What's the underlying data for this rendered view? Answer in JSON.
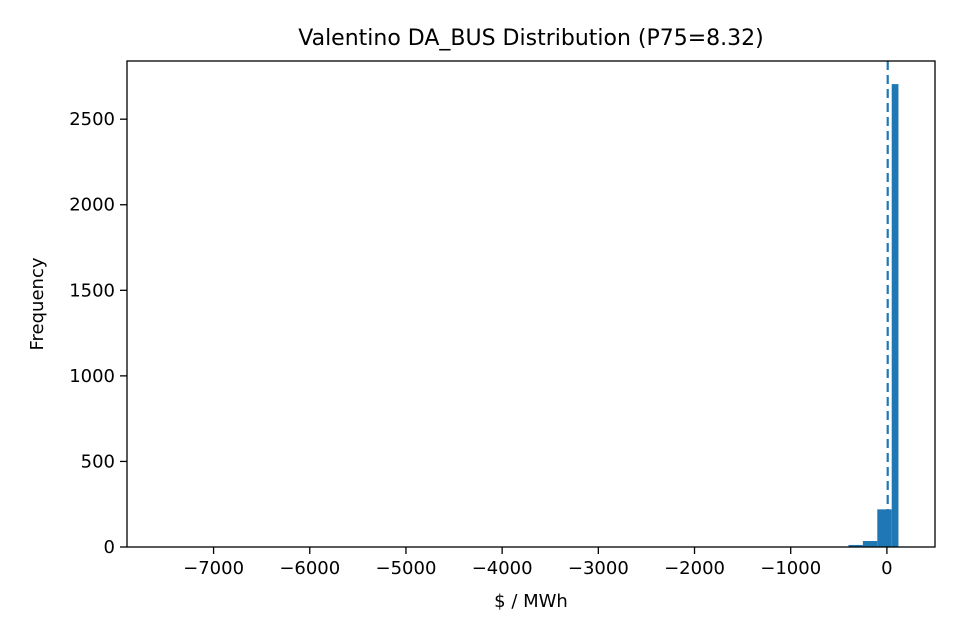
{
  "chart_data": {
    "type": "histogram",
    "title": "Valentino DA_BUS Distribution (P75=8.32)",
    "xlabel": "$ / MWh",
    "ylabel": "Frequency",
    "xlim": [
      -7900,
      500
    ],
    "ylim": [
      0,
      2840
    ],
    "x_ticks": [
      -7000,
      -6000,
      -5000,
      -4000,
      -3000,
      -2000,
      -1000,
      0
    ],
    "x_tick_labels": [
      "−7000",
      "−6000",
      "−5000",
      "−4000",
      "−3000",
      "−2000",
      "−1000",
      "0"
    ],
    "y_ticks": [
      0,
      500,
      1000,
      1500,
      2000,
      2500
    ],
    "y_tick_labels": [
      "0",
      "500",
      "1000",
      "1500",
      "2000",
      "2500"
    ],
    "bins": [
      {
        "x0": -550,
        "x1": -400,
        "count": 3
      },
      {
        "x0": -400,
        "x1": -250,
        "count": 12
      },
      {
        "x0": -250,
        "x1": -100,
        "count": 35
      },
      {
        "x0": -100,
        "x1": 50,
        "count": 220
      },
      {
        "x0": 50,
        "x1": 120,
        "count": 2705
      }
    ],
    "reference_line": {
      "x": 8.32,
      "style": "dashed"
    },
    "grid": false,
    "colors": {
      "bar": "#1f77b4",
      "reference_line": "#1f77b4",
      "axes": "#000000"
    }
  }
}
